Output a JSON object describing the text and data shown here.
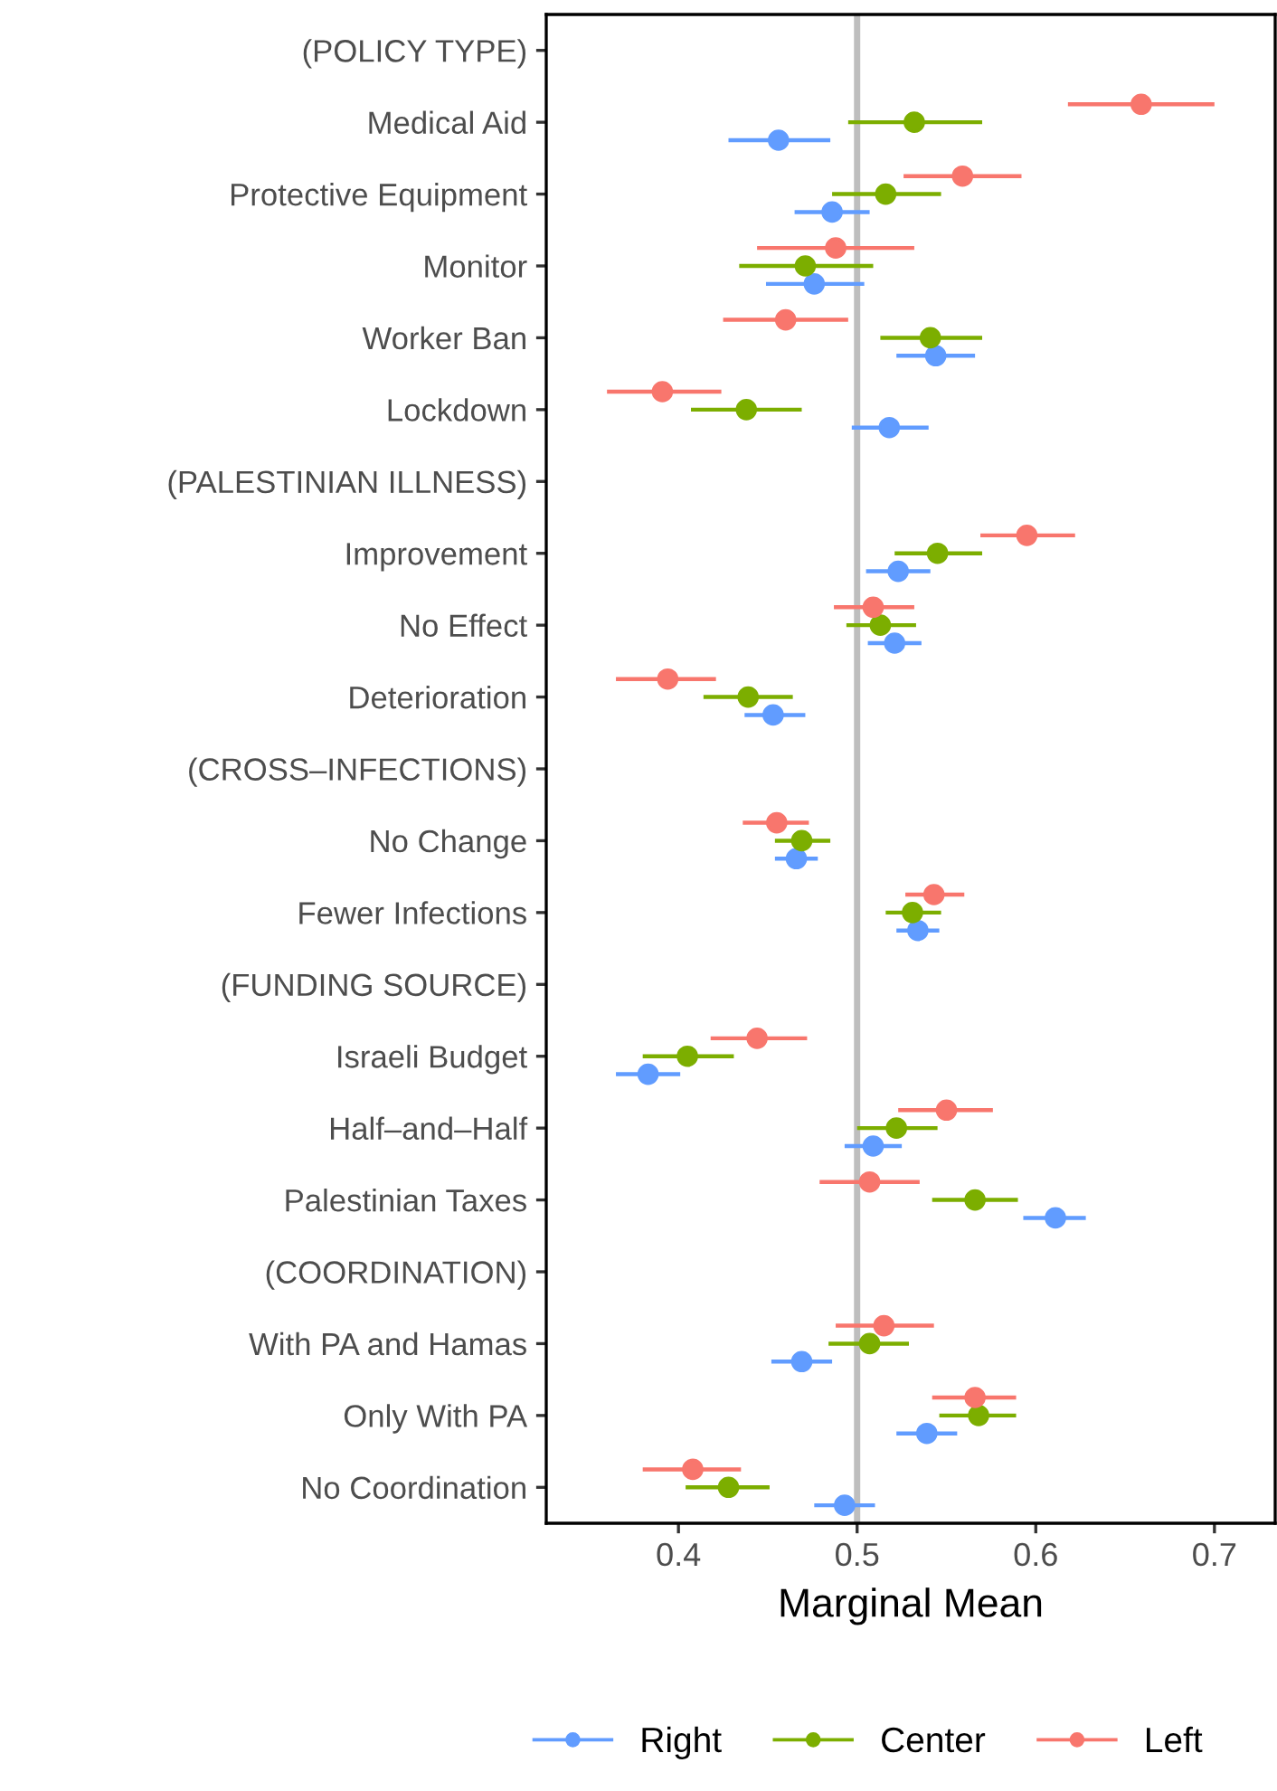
{
  "chart_data": {
    "type": "scatter",
    "orientation": "horizontal",
    "xlabel": "Marginal Mean",
    "categories": [
      "(POLICY TYPE)",
      "Medical Aid",
      "Protective Equipment",
      "Monitor",
      "Worker Ban",
      "Lockdown",
      "(PALESTINIAN ILLNESS)",
      "Improvement",
      "No Effect",
      "Deterioration",
      "(CROSS–INFECTIONS)",
      "No Change",
      "Fewer Infections",
      "(FUNDING SOURCE)",
      "Israeli Budget",
      "Half–and–Half",
      "Palestinian Taxes",
      "(COORDINATION)",
      "With PA and Hamas",
      "Only With PA",
      "No Coordination"
    ],
    "series": [
      {
        "name": "Right",
        "color": "#619cff",
        "values": [
          null,
          0.456,
          0.486,
          0.476,
          0.544,
          0.518,
          null,
          0.523,
          0.521,
          0.453,
          null,
          0.466,
          0.534,
          null,
          0.383,
          0.509,
          0.611,
          null,
          0.469,
          0.539,
          0.493
        ],
        "errors": [
          null,
          [
            0.428,
            0.485
          ],
          [
            0.465,
            0.507
          ],
          [
            0.449,
            0.504
          ],
          [
            0.522,
            0.566
          ],
          [
            0.497,
            0.54
          ],
          null,
          [
            0.505,
            0.541
          ],
          [
            0.506,
            0.536
          ],
          [
            0.437,
            0.471
          ],
          null,
          [
            0.454,
            0.478
          ],
          [
            0.522,
            0.546
          ],
          null,
          [
            0.365,
            0.401
          ],
          [
            0.493,
            0.525
          ],
          [
            0.593,
            0.628
          ],
          null,
          [
            0.452,
            0.486
          ],
          [
            0.522,
            0.556
          ],
          [
            0.476,
            0.51
          ]
        ]
      },
      {
        "name": "Center",
        "color": "#7cae00",
        "values": [
          null,
          0.532,
          0.516,
          0.471,
          0.541,
          0.438,
          null,
          0.545,
          0.513,
          0.439,
          null,
          0.469,
          0.531,
          null,
          0.405,
          0.522,
          0.566,
          null,
          0.507,
          0.568,
          0.428
        ],
        "errors": [
          null,
          [
            0.495,
            0.57
          ],
          [
            0.486,
            0.547
          ],
          [
            0.434,
            0.509
          ],
          [
            0.513,
            0.57
          ],
          [
            0.407,
            0.469
          ],
          null,
          [
            0.521,
            0.57
          ],
          [
            0.494,
            0.533
          ],
          [
            0.414,
            0.464
          ],
          null,
          [
            0.454,
            0.485
          ],
          [
            0.516,
            0.547
          ],
          null,
          [
            0.38,
            0.431
          ],
          [
            0.5,
            0.545
          ],
          [
            0.542,
            0.59
          ],
          null,
          [
            0.484,
            0.529
          ],
          [
            0.546,
            0.589
          ],
          [
            0.404,
            0.451
          ]
        ]
      },
      {
        "name": "Left",
        "color": "#f8766d",
        "values": [
          null,
          0.659,
          0.559,
          0.488,
          0.46,
          0.391,
          null,
          0.595,
          0.509,
          0.394,
          null,
          0.455,
          0.543,
          null,
          0.444,
          0.55,
          0.507,
          null,
          0.515,
          0.566,
          0.408
        ],
        "errors": [
          null,
          [
            0.618,
            0.7
          ],
          [
            0.526,
            0.592
          ],
          [
            0.444,
            0.532
          ],
          [
            0.425,
            0.495
          ],
          [
            0.36,
            0.424
          ],
          null,
          [
            0.569,
            0.622
          ],
          [
            0.487,
            0.532
          ],
          [
            0.365,
            0.421
          ],
          null,
          [
            0.436,
            0.473
          ],
          [
            0.527,
            0.56
          ],
          null,
          [
            0.418,
            0.472
          ],
          [
            0.523,
            0.576
          ],
          [
            0.479,
            0.535
          ],
          null,
          [
            0.488,
            0.543
          ],
          [
            0.542,
            0.589
          ],
          [
            0.38,
            0.435
          ]
        ]
      }
    ],
    "xlim": [
      0.326,
      0.734
    ],
    "xticks": [
      0.4,
      0.5,
      0.6,
      0.7
    ],
    "ref_lines": [
      {
        "axis": "x",
        "value": 0.5,
        "color": "#bebebe"
      }
    ],
    "grid": false,
    "legend": "bottom",
    "marker": "circle"
  }
}
